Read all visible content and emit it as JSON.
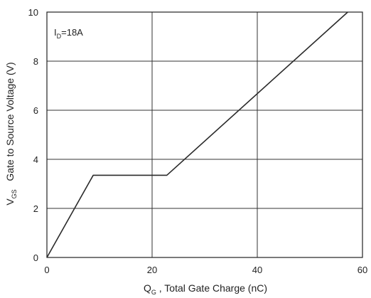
{
  "chart_data": {
    "type": "line",
    "annotation": {
      "main": "I",
      "sub": "D",
      "rest": "=18A"
    },
    "xlabel": {
      "main": "Q",
      "sub": "G",
      "rest": " , Total Gate Charge (nC)"
    },
    "ylabel": {
      "main": "V",
      "sub": "GS",
      "rest": "   Gate to Source Voltage (V)"
    },
    "xlim": [
      0,
      60
    ],
    "ylim": [
      0,
      10
    ],
    "x_ticks": [
      0,
      20,
      40,
      60
    ],
    "y_ticks": [
      0,
      2,
      4,
      6,
      8,
      10
    ],
    "grid": true,
    "series": [
      {
        "x": [
          0,
          8.8,
          22.8,
          57.2
        ],
        "y": [
          0,
          3.35,
          3.35,
          10
        ]
      }
    ],
    "colors": {
      "line": "#2a2a2a",
      "grid": "#333333",
      "frame": "#222222"
    }
  }
}
